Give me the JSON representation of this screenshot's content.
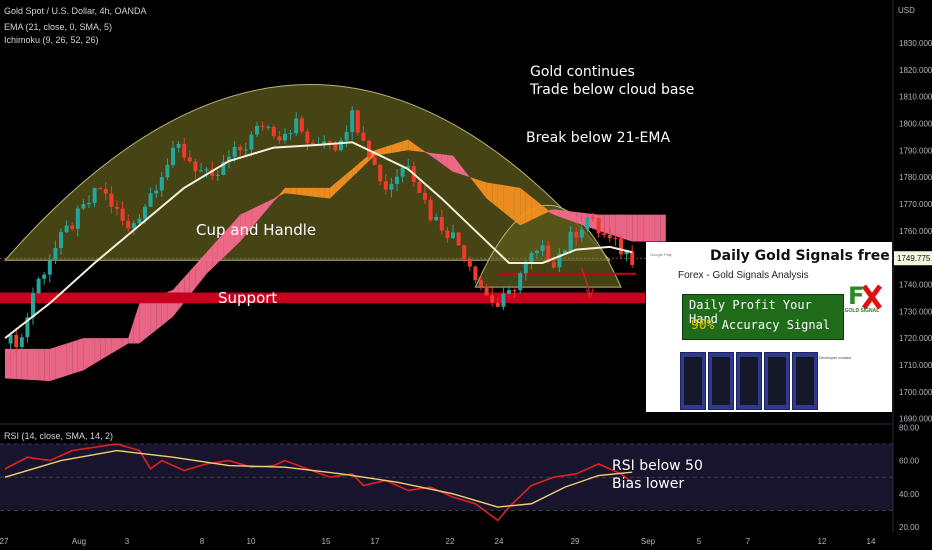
{
  "chart_data": [
    {
      "type": "candlestick",
      "title": "Gold Spot / U.S. Dollar, 4h, OANDA",
      "currency": "USD",
      "indicators": [
        "EMA (21, close, 0, SMA, 5)",
        "Ichimoku (9, 26, 52, 26)"
      ],
      "y_ticks": [
        1690,
        1700,
        1710,
        1720,
        1730,
        1740,
        1750,
        1760,
        1770,
        1780,
        1790,
        1800,
        1810,
        1820,
        1830
      ],
      "y_tick_labels": [
        "1690.000",
        "1700.000",
        "1710.000",
        "1720.000",
        "1730.000",
        "1740.000",
        "1749.775",
        "1760.000",
        "1770.000",
        "1780.000",
        "1790.000",
        "1800.000",
        "1810.000",
        "1820.000",
        "1830.000"
      ],
      "ylim": [
        1688,
        1846
      ],
      "last_price": 1749.775,
      "x_tick_labels": [
        "27",
        "Aug",
        "3",
        "8",
        "10",
        "15",
        "17",
        "22",
        "24",
        "29",
        "Sep",
        "5",
        "7",
        "12",
        "14"
      ],
      "price_path": [
        {
          "t": 0,
          "p": 1718
        },
        {
          "t": 3,
          "p": 1720
        },
        {
          "t": 5,
          "p": 1737
        },
        {
          "t": 8,
          "p": 1750
        },
        {
          "t": 11,
          "p": 1760
        },
        {
          "t": 14,
          "p": 1768
        },
        {
          "t": 17,
          "p": 1776
        },
        {
          "t": 19,
          "p": 1770
        },
        {
          "t": 22,
          "p": 1760
        },
        {
          "t": 25,
          "p": 1770
        },
        {
          "t": 28,
          "p": 1782
        },
        {
          "t": 31,
          "p": 1791
        },
        {
          "t": 34,
          "p": 1784
        },
        {
          "t": 37,
          "p": 1778
        },
        {
          "t": 40,
          "p": 1787
        },
        {
          "t": 43,
          "p": 1792
        },
        {
          "t": 46,
          "p": 1800
        },
        {
          "t": 49,
          "p": 1796
        },
        {
          "t": 52,
          "p": 1800
        },
        {
          "t": 55,
          "p": 1790
        },
        {
          "t": 57,
          "p": 1795
        },
        {
          "t": 59,
          "p": 1792
        },
        {
          "t": 62,
          "p": 1803
        },
        {
          "t": 64,
          "p": 1796
        },
        {
          "t": 66,
          "p": 1784
        },
        {
          "t": 68,
          "p": 1776
        },
        {
          "t": 70,
          "p": 1781
        },
        {
          "t": 72,
          "p": 1786
        },
        {
          "t": 74,
          "p": 1776
        },
        {
          "t": 76,
          "p": 1766
        },
        {
          "t": 78,
          "p": 1762
        },
        {
          "t": 80,
          "p": 1758
        },
        {
          "t": 82,
          "p": 1752
        },
        {
          "t": 84,
          "p": 1744
        },
        {
          "t": 86,
          "p": 1736
        },
        {
          "t": 88,
          "p": 1732
        },
        {
          "t": 90,
          "p": 1736
        },
        {
          "t": 92,
          "p": 1744
        },
        {
          "t": 94,
          "p": 1750
        },
        {
          "t": 96,
          "p": 1752
        },
        {
          "t": 98,
          "p": 1749
        },
        {
          "t": 100,
          "p": 1754
        },
        {
          "t": 102,
          "p": 1760
        },
        {
          "t": 104,
          "p": 1765
        },
        {
          "t": 106,
          "p": 1760
        },
        {
          "t": 108,
          "p": 1756
        },
        {
          "t": 110,
          "p": 1753
        },
        {
          "t": 112,
          "p": 1750
        }
      ],
      "ema21": [
        {
          "t": 0,
          "p": 1720
        },
        {
          "t": 8,
          "p": 1733
        },
        {
          "t": 16,
          "p": 1748
        },
        {
          "t": 24,
          "p": 1762
        },
        {
          "t": 32,
          "p": 1776
        },
        {
          "t": 40,
          "p": 1786
        },
        {
          "t": 48,
          "p": 1791
        },
        {
          "t": 56,
          "p": 1792
        },
        {
          "t": 62,
          "p": 1793
        },
        {
          "t": 66,
          "p": 1789
        },
        {
          "t": 72,
          "p": 1783
        },
        {
          "t": 78,
          "p": 1772
        },
        {
          "t": 84,
          "p": 1760
        },
        {
          "t": 90,
          "p": 1748
        },
        {
          "t": 96,
          "p": 1748
        },
        {
          "t": 102,
          "p": 1753
        },
        {
          "t": 108,
          "p": 1754
        },
        {
          "t": 112,
          "p": 1752
        }
      ],
      "cloud_a": [
        {
          "t": 0,
          "p": 1716
        },
        {
          "t": 8,
          "p": 1716
        },
        {
          "t": 14,
          "p": 1720
        },
        {
          "t": 22,
          "p": 1720
        },
        {
          "t": 24,
          "p": 1733
        },
        {
          "t": 30,
          "p": 1738
        },
        {
          "t": 36,
          "p": 1752
        },
        {
          "t": 42,
          "p": 1766
        },
        {
          "t": 50,
          "p": 1774
        },
        {
          "t": 58,
          "p": 1772
        },
        {
          "t": 66,
          "p": 1788
        },
        {
          "t": 72,
          "p": 1790
        },
        {
          "t": 80,
          "p": 1788
        },
        {
          "t": 86,
          "p": 1772
        },
        {
          "t": 92,
          "p": 1762
        },
        {
          "t": 98,
          "p": 1768
        },
        {
          "t": 106,
          "p": 1766
        },
        {
          "t": 112,
          "p": 1766
        },
        {
          "t": 118,
          "p": 1766
        }
      ],
      "cloud_b": [
        {
          "t": 0,
          "p": 1705
        },
        {
          "t": 8,
          "p": 1704
        },
        {
          "t": 14,
          "p": 1708
        },
        {
          "t": 22,
          "p": 1718
        },
        {
          "t": 24,
          "p": 1718
        },
        {
          "t": 30,
          "p": 1728
        },
        {
          "t": 36,
          "p": 1744
        },
        {
          "t": 42,
          "p": 1756
        },
        {
          "t": 50,
          "p": 1776
        },
        {
          "t": 58,
          "p": 1776
        },
        {
          "t": 66,
          "p": 1790
        },
        {
          "t": 72,
          "p": 1794
        },
        {
          "t": 80,
          "p": 1782
        },
        {
          "t": 86,
          "p": 1778
        },
        {
          "t": 92,
          "p": 1776
        },
        {
          "t": 98,
          "p": 1766
        },
        {
          "t": 106,
          "p": 1760
        },
        {
          "t": 112,
          "p": 1756
        },
        {
          "t": 118,
          "p": 1756
        }
      ],
      "support_zone": [
        1733,
        1737
      ],
      "resistance_line": 1744
    },
    {
      "type": "line",
      "title": "RSI (14, close, SMA, 14, 2)",
      "y_tick_labels": [
        "80.00",
        "60.00",
        "40.00",
        "20.00"
      ],
      "ylim": [
        17,
        82
      ],
      "band": [
        30,
        70
      ],
      "rsi": [
        {
          "t": 0,
          "p": 55
        },
        {
          "t": 4,
          "p": 62
        },
        {
          "t": 8,
          "p": 60
        },
        {
          "t": 12,
          "p": 66
        },
        {
          "t": 16,
          "p": 68
        },
        {
          "t": 20,
          "p": 70
        },
        {
          "t": 24,
          "p": 66
        },
        {
          "t": 26,
          "p": 55
        },
        {
          "t": 28,
          "p": 60
        },
        {
          "t": 32,
          "p": 54
        },
        {
          "t": 36,
          "p": 58
        },
        {
          "t": 40,
          "p": 60
        },
        {
          "t": 44,
          "p": 56
        },
        {
          "t": 48,
          "p": 57
        },
        {
          "t": 50,
          "p": 60
        },
        {
          "t": 54,
          "p": 55
        },
        {
          "t": 58,
          "p": 50
        },
        {
          "t": 62,
          "p": 52
        },
        {
          "t": 64,
          "p": 45
        },
        {
          "t": 68,
          "p": 48
        },
        {
          "t": 72,
          "p": 42
        },
        {
          "t": 76,
          "p": 44
        },
        {
          "t": 80,
          "p": 38
        },
        {
          "t": 84,
          "p": 34
        },
        {
          "t": 88,
          "p": 24
        },
        {
          "t": 90,
          "p": 32
        },
        {
          "t": 94,
          "p": 45
        },
        {
          "t": 98,
          "p": 50
        },
        {
          "t": 102,
          "p": 52
        },
        {
          "t": 106,
          "p": 58
        },
        {
          "t": 108,
          "p": 55
        },
        {
          "t": 110,
          "p": 52
        },
        {
          "t": 112,
          "p": 47
        }
      ],
      "rsi_ma": [
        {
          "t": 0,
          "p": 50
        },
        {
          "t": 10,
          "p": 60
        },
        {
          "t": 20,
          "p": 66
        },
        {
          "t": 30,
          "p": 62
        },
        {
          "t": 40,
          "p": 57
        },
        {
          "t": 50,
          "p": 56
        },
        {
          "t": 60,
          "p": 52
        },
        {
          "t": 70,
          "p": 47
        },
        {
          "t": 80,
          "p": 40
        },
        {
          "t": 88,
          "p": 32
        },
        {
          "t": 94,
          "p": 34
        },
        {
          "t": 100,
          "p": 44
        },
        {
          "t": 106,
          "p": 51
        },
        {
          "t": 112,
          "p": 53
        }
      ]
    }
  ],
  "legend": {
    "title": "Gold Spot / U.S. Dollar, 4h, OANDA",
    "ema": "EMA (21, close, 0, SMA, 5)",
    "ichimoku": "Ichimoku (9, 26, 52, 26)",
    "rsi": "RSI (14, close, SMA, 14, 2)"
  },
  "axis": {
    "currency": "USD"
  },
  "annotations": {
    "gold_continues": [
      "Gold continues",
      "Trade below cloud base"
    ],
    "break_ema": "Break below 21-EMA",
    "cup_handle": "Cup and Handle",
    "support": "Support",
    "rsi_note": [
      "RSI below 50",
      "Bias lower"
    ]
  },
  "ad": {
    "store": "Google Play",
    "title": "Daily Gold Signals free",
    "app_name": "Forex - Gold Signals Analysis",
    "line1": "Daily Profit Your Hand",
    "line2_accent": "90%",
    "line2_rest": " Accuracy Signal",
    "logo_text": "&GOLD SIGNAL",
    "developer": "Developer contact"
  },
  "colors": {
    "bull": "#26a69a",
    "bear": "#ef3b2c",
    "ema": "#f5f0d8",
    "cloud_bull": "#f56a8c",
    "cloud_bear": "#f39020",
    "support": "#c8001e",
    "cup": "#5d5a1c",
    "rsi": "#e02020",
    "rsi_ma": "#f0d070"
  }
}
